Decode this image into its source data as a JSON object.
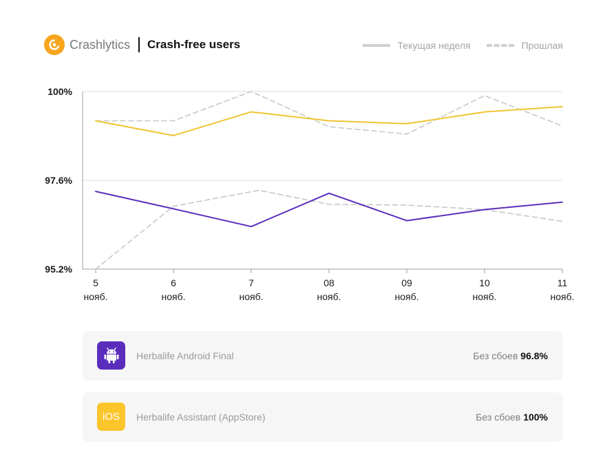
{
  "header": {
    "brand": "Crashlytics",
    "report_title": "Crash-free users"
  },
  "legend": {
    "current_label": "Текущая неделя",
    "previous_label": "Прошлая"
  },
  "chart_data": {
    "type": "line",
    "categories": [
      {
        "day": "5",
        "month": "нояб."
      },
      {
        "day": "6",
        "month": "нояб."
      },
      {
        "day": "7",
        "month": "нояб."
      },
      {
        "day": "08",
        "month": "нояб."
      },
      {
        "day": "09",
        "month": "нояб."
      },
      {
        "day": "10",
        "month": "нояб."
      },
      {
        "day": "11",
        "month": "нояб."
      }
    ],
    "y_ticks": [
      "100%",
      "97.6%",
      "95.2%"
    ],
    "panels": [
      {
        "app": "Herbalife Assistant (AppStore)",
        "ylim": [
          97.6,
          100
        ],
        "color": "#f0c432",
        "series": [
          {
            "name": "Текущая неделя",
            "style": "solid",
            "x": [
              0,
              1,
              2,
              3,
              4,
              5,
              6
            ],
            "values": [
              99.21,
              98.81,
              99.45,
              99.21,
              99.13,
              99.45,
              99.59
            ]
          },
          {
            "name": "Прошлая",
            "style": "dashed",
            "x": [
              0,
              1,
              2,
              3,
              4,
              5,
              6
            ],
            "values": [
              99.21,
              99.21,
              100.0,
              99.05,
              98.85,
              99.89,
              99.07
            ]
          }
        ]
      },
      {
        "app": "Herbalife Android Final",
        "ylim": [
          95.2,
          97.6
        ],
        "color": "#5b2dbc",
        "series": [
          {
            "name": "Текущая неделя",
            "style": "solid",
            "x": [
              0,
              1,
              2,
              3,
              4,
              5,
              6
            ],
            "values": [
              97.3,
              96.83,
              96.35,
              97.25,
              96.51,
              96.81,
              97.01
            ]
          },
          {
            "name": "Прошлая",
            "style": "dashed",
            "x": [
              0,
              1,
              2.1,
              3,
              4,
              5,
              6
            ],
            "values": [
              95.2,
              96.9,
              97.33,
              96.95,
              96.93,
              96.81,
              96.49
            ]
          }
        ]
      }
    ],
    "grid": "horizontal",
    "legend_position": "top-right"
  },
  "apps": [
    {
      "name": "Herbalife Android Final",
      "status_label": "Без сбоев",
      "value": "96.8%",
      "icon": "android-icon",
      "color": "#5b2dbc"
    },
    {
      "name": "Herbalife Assistant (AppStore)",
      "status_label": "Без сбоев",
      "value": "100%",
      "icon": "ios-icon",
      "icon_text": "iOS",
      "color": "#fbc52c"
    }
  ]
}
